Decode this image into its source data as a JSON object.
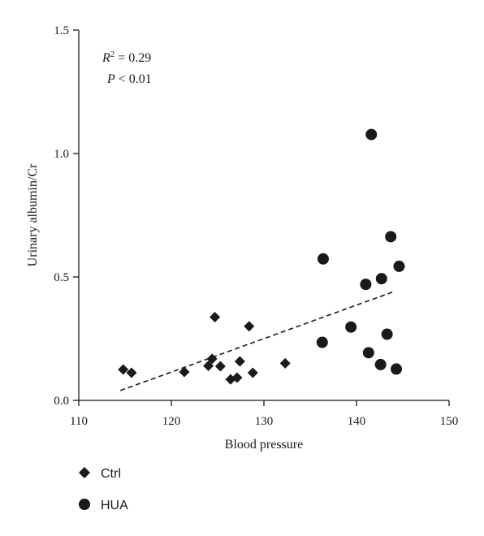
{
  "chart_data": {
    "type": "scatter",
    "xlabel": "Blood pressure",
    "ylabel": "Urinary albumin/Cr",
    "xlim": [
      110,
      150
    ],
    "ylim": [
      0,
      1.5
    ],
    "x_ticks": [
      "110",
      "120",
      "130",
      "140",
      "150"
    ],
    "y_ticks": [
      "0.0",
      "0.5",
      "1.0",
      "1.5"
    ],
    "grid": false,
    "legend_position": "bottom-left",
    "annotation": {
      "r2_symbol": "R",
      "r2_sup": "2",
      "r2_value": " = 0.29",
      "p_symbol": "P",
      "p_value": " < 0.01"
    },
    "trendline": {
      "style": "dashed",
      "x": [
        114.5,
        144.0
      ],
      "y": [
        0.04,
        0.44
      ]
    },
    "series": [
      {
        "name": "Ctrl",
        "marker": "diamond",
        "color": "#1a1a1a",
        "x": [
          114.8,
          115.7,
          121.4,
          124.0,
          124.4,
          124.7,
          125.3,
          126.4,
          127.1,
          127.4,
          128.4,
          128.8,
          132.3
        ],
        "y": [
          0.125,
          0.112,
          0.115,
          0.14,
          0.168,
          0.337,
          0.138,
          0.085,
          0.092,
          0.158,
          0.3,
          0.112,
          0.15
        ]
      },
      {
        "name": "HUA",
        "marker": "circle",
        "color": "#1a1a1a",
        "x": [
          136.3,
          136.4,
          139.4,
          141.0,
          141.3,
          141.6,
          142.6,
          142.7,
          143.3,
          143.7,
          144.3,
          144.6
        ],
        "y": [
          0.235,
          0.573,
          0.297,
          0.47,
          0.193,
          1.077,
          0.145,
          0.493,
          0.268,
          0.663,
          0.127,
          0.543
        ]
      }
    ]
  }
}
